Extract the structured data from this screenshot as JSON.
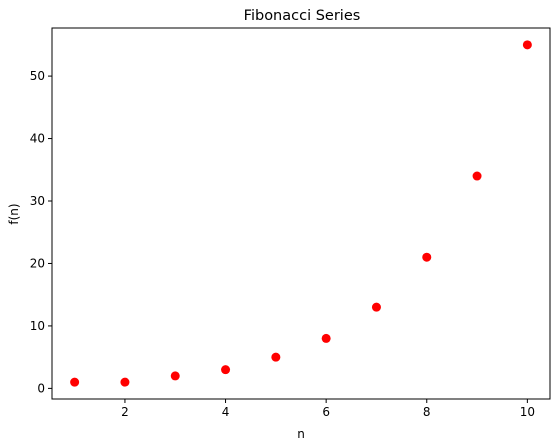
{
  "chart_data": {
    "type": "scatter",
    "title": "Fibonacci Series",
    "xlabel": "n",
    "ylabel": "f(n)",
    "x": [
      1,
      2,
      3,
      4,
      5,
      6,
      7,
      8,
      9,
      10
    ],
    "y": [
      1,
      1,
      2,
      3,
      5,
      8,
      13,
      21,
      34,
      55
    ],
    "xlim": [
      0.55,
      10.45
    ],
    "ylim": [
      -1.7,
      57.7
    ],
    "xticks": [
      2,
      4,
      6,
      8,
      10
    ],
    "yticks": [
      0,
      10,
      20,
      30,
      40,
      50
    ],
    "grid": false,
    "marker_color": "#ff0000",
    "marker": "circle"
  }
}
